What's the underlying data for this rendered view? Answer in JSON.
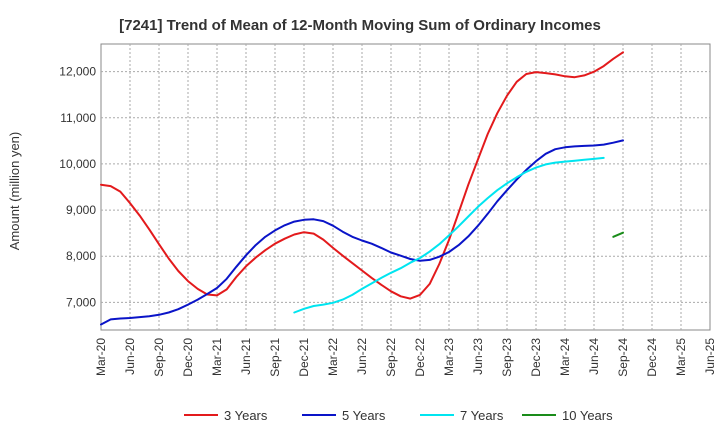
{
  "chart_data": {
    "type": "line",
    "title": "[7241]  Trend of Mean of 12-Month Moving Sum of Ordinary Incomes",
    "xlabel": "",
    "ylabel": "Amount (million yen)",
    "ylim": [
      6400,
      12600
    ],
    "yticks": [
      7000,
      8000,
      9000,
      10000,
      11000,
      12000
    ],
    "ytick_labels": [
      "7,000",
      "8,000",
      "9,000",
      "10,000",
      "11,000",
      "12,000"
    ],
    "x_categories": [
      "Mar-20",
      "Jun-20",
      "Sep-20",
      "Dec-20",
      "Mar-21",
      "Jun-21",
      "Sep-21",
      "Dec-21",
      "Mar-22",
      "Jun-22",
      "Sep-22",
      "Dec-22",
      "Mar-23",
      "Jun-23",
      "Sep-23",
      "Dec-23",
      "Mar-24",
      "Jun-24",
      "Sep-24",
      "Dec-24",
      "Mar-25",
      "Jun-25"
    ],
    "grid": true,
    "legend_position": "bottom",
    "series": [
      {
        "name": "3 Years",
        "color": "#e31a1c",
        "start_index": 0,
        "values": [
          9550,
          9520,
          9400,
          9150,
          8880,
          8580,
          8260,
          7950,
          7680,
          7460,
          7290,
          7170,
          7150,
          7280,
          7550,
          7780,
          7970,
          8130,
          8270,
          8380,
          8470,
          8520,
          8490,
          8360,
          8180,
          8010,
          7850,
          7690,
          7530,
          7380,
          7240,
          7130,
          7080,
          7160,
          7400,
          7830,
          8350,
          8950,
          9550,
          10100,
          10650,
          11100,
          11480,
          11780,
          11950,
          11990,
          11970,
          11940,
          11900,
          11880,
          11920,
          12000,
          12120,
          12280,
          12420
        ]
      },
      {
        "name": "5 Years",
        "color": "#0a14c8",
        "start_index": 0,
        "values": [
          6520,
          6630,
          6650,
          6660,
          6680,
          6700,
          6730,
          6780,
          6850,
          6950,
          7060,
          7180,
          7310,
          7510,
          7770,
          8020,
          8240,
          8420,
          8560,
          8670,
          8750,
          8790,
          8800,
          8760,
          8660,
          8530,
          8420,
          8340,
          8270,
          8180,
          8080,
          8010,
          7940,
          7900,
          7920,
          7990,
          8090,
          8240,
          8430,
          8660,
          8920,
          9190,
          9430,
          9660,
          9870,
          10060,
          10220,
          10320,
          10360,
          10380,
          10390,
          10400,
          10420,
          10460,
          10510
        ]
      },
      {
        "name": "7 Years",
        "color": "#00e5f0",
        "start_index": 20,
        "values": [
          6780,
          6860,
          6920,
          6950,
          6990,
          7060,
          7160,
          7290,
          7410,
          7530,
          7640,
          7740,
          7860,
          7960,
          8100,
          8260,
          8450,
          8650,
          8860,
          9070,
          9260,
          9430,
          9580,
          9710,
          9830,
          9920,
          9990,
          10030,
          10050,
          10070,
          10090,
          10110,
          10130
        ]
      },
      {
        "name": "10 Years",
        "color": "#1a8c1a",
        "start_index": 53,
        "values": [
          8420,
          8510
        ]
      }
    ]
  }
}
